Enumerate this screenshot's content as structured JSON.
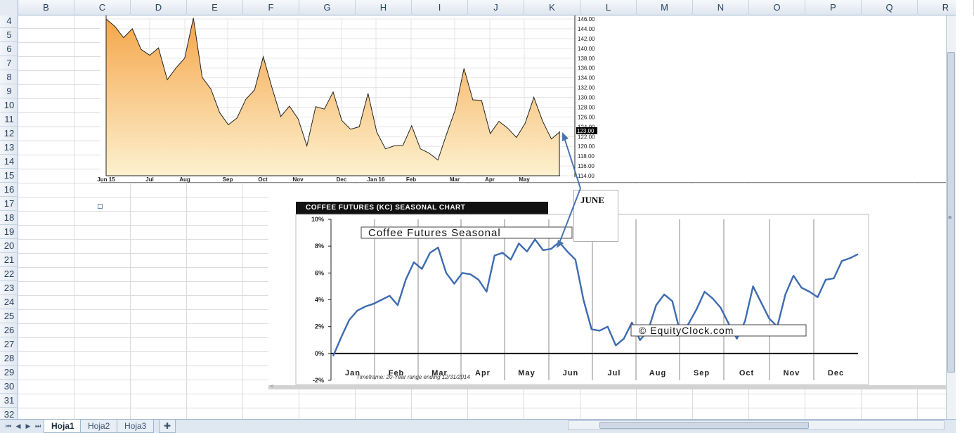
{
  "columns": [
    "B",
    "C",
    "D",
    "E",
    "F",
    "G",
    "H",
    "I",
    "J",
    "K",
    "L",
    "M",
    "N",
    "O",
    "P",
    "Q",
    "R"
  ],
  "rows": [
    "4",
    "5",
    "6",
    "7",
    "8",
    "9",
    "10",
    "11",
    "12",
    "13",
    "14",
    "15",
    "16",
    "17",
    "18",
    "19",
    "20",
    "21",
    "22",
    "23",
    "24",
    "25",
    "26",
    "27",
    "28",
    "29",
    "30",
    "31",
    "32"
  ],
  "sheet_tabs": [
    {
      "label": "Hoja1",
      "active": true
    },
    {
      "label": "Hoja2",
      "active": false
    },
    {
      "label": "Hoja3",
      "active": false
    }
  ],
  "annotation": {
    "label": "JUNE"
  },
  "chart_data": [
    {
      "type": "area",
      "fill_colors": [
        "#f5a64b",
        "#fdf1cf"
      ],
      "x_tick_labels": [
        "Jun 15",
        "Jul",
        "Aug",
        "Sep",
        "Oct",
        "Nov",
        "Dec",
        "Jan 16",
        "Feb",
        "Mar",
        "Apr",
        "May"
      ],
      "y_tick_labels": [
        "146.00",
        "144.00",
        "142.00",
        "140.00",
        "138.00",
        "136.00",
        "134.00",
        "132.00",
        "130.00",
        "128.00",
        "126.00",
        "124.00",
        "122.00",
        "120.00",
        "118.00",
        "116.00",
        "114.00"
      ],
      "current_price_label": "123.00",
      "ylim": [
        114,
        146
      ],
      "y": [
        146.0,
        144.5,
        142.2,
        144.0,
        139.8,
        138.6,
        140.1,
        133.6,
        136.0,
        138.0,
        146.2,
        134.1,
        131.7,
        126.9,
        124.4,
        125.8,
        129.6,
        131.5,
        138.3,
        132.0,
        126.1,
        128.2,
        125.6,
        120.1,
        128.1,
        127.6,
        131.1,
        125.3,
        123.5,
        124.0,
        130.8,
        122.9,
        119.5,
        120.1,
        120.2,
        124.2,
        119.5,
        118.6,
        117.2,
        122.5,
        127.5,
        135.9,
        129.5,
        129.4,
        122.6,
        125.1,
        123.7,
        121.8,
        124.7,
        130.0,
        125.1,
        121.5,
        123.0
      ]
    },
    {
      "type": "line",
      "banner": "COFFEE FUTURES (KC) SEASONAL CHART",
      "title": "Coffee Futures Seasonal",
      "watermark": "© EquityClock.com",
      "footnote": "Timeframe: 20-Year range ending 12/31/2014",
      "line_color": "#3e6bb0",
      "categories": [
        "Jan",
        "Feb",
        "Mar",
        "Apr",
        "May",
        "Jun",
        "Jul",
        "Aug",
        "Sep",
        "Oct",
        "Nov",
        "Dec"
      ],
      "y_tick_labels": [
        "10%",
        "8%",
        "6%",
        "4%",
        "2%",
        "0%",
        "-2%"
      ],
      "ylim": [
        -2,
        10
      ],
      "y": [
        -0.2,
        1.2,
        2.5,
        3.2,
        3.5,
        3.7,
        4.0,
        4.3,
        3.6,
        5.5,
        6.8,
        6.3,
        7.5,
        7.9,
        6.0,
        5.2,
        6.0,
        5.9,
        5.5,
        4.6,
        7.3,
        7.5,
        7.0,
        8.2,
        7.6,
        8.5,
        7.7,
        7.8,
        8.3,
        7.6,
        7.0,
        4.0,
        1.8,
        1.7,
        2.0,
        0.6,
        1.1,
        2.3,
        1.0,
        1.7,
        3.6,
        4.4,
        3.9,
        1.5,
        2.2,
        3.3,
        4.6,
        4.1,
        3.4,
        2.2,
        1.1,
        2.4,
        5.0,
        3.8,
        2.6,
        2.0,
        4.4,
        5.8,
        4.9,
        4.6,
        4.2,
        5.5,
        5.6,
        6.9,
        7.1,
        7.4
      ]
    }
  ]
}
